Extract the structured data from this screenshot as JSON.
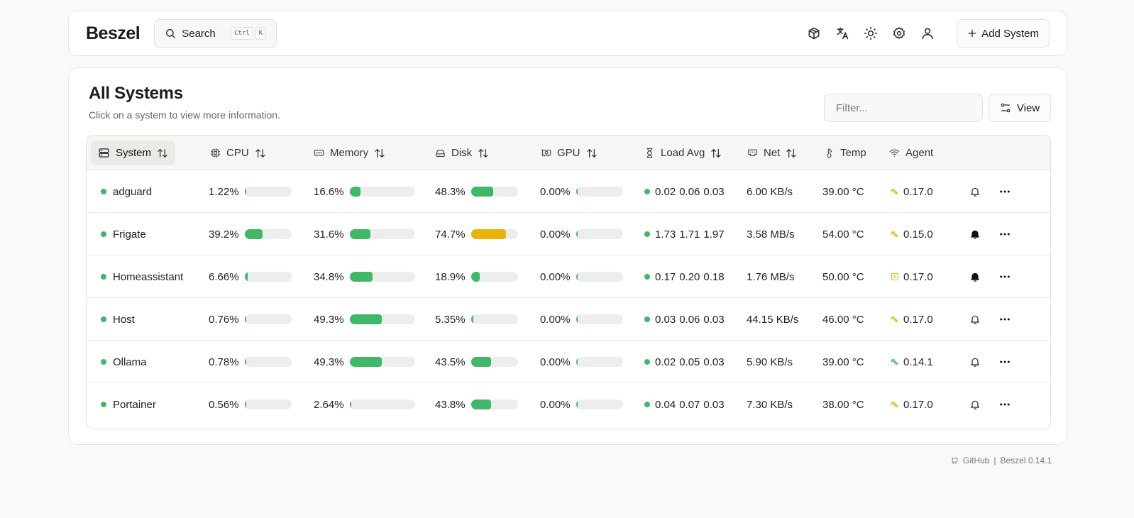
{
  "header": {
    "logo": "Beszel",
    "search_label": "Search",
    "search_keys": [
      "Ctrl",
      "K"
    ],
    "icons": [
      "cube-icon",
      "translate-icon",
      "sun-icon",
      "gear-icon",
      "user-icon"
    ],
    "add_system_label": "Add System"
  },
  "main": {
    "title": "All Systems",
    "subtitle": "Click on a system to view more information.",
    "filter_placeholder": "Filter...",
    "view_label": "View"
  },
  "table": {
    "columns": [
      {
        "label": "System",
        "icon": "server-icon",
        "sortable": true
      },
      {
        "label": "CPU",
        "icon": "cpu-icon",
        "sortable": true
      },
      {
        "label": "Memory",
        "icon": "memory-icon",
        "sortable": true
      },
      {
        "label": "Disk",
        "icon": "disk-icon",
        "sortable": true
      },
      {
        "label": "GPU",
        "icon": "gpu-icon",
        "sortable": true
      },
      {
        "label": "Load Avg",
        "icon": "hourglass-icon",
        "sortable": true
      },
      {
        "label": "Net",
        "icon": "ethernet-icon",
        "sortable": true
      },
      {
        "label": "Temp",
        "icon": "thermometer-icon",
        "sortable": false
      },
      {
        "label": "Agent",
        "icon": "wifi-icon",
        "sortable": false
      }
    ],
    "rows": [
      {
        "name": "adguard",
        "cpu": "1.22%",
        "cpu_pct": 1.22,
        "mem": "16.6%",
        "mem_pct": 16.6,
        "disk": "48.3%",
        "disk_pct": 48.3,
        "gpu": "0.00%",
        "gpu_pct": 0,
        "load": [
          "0.02",
          "0.06",
          "0.03"
        ],
        "net": "6.00 KB/s",
        "temp": "39.00 °C",
        "agent": "0.17.0",
        "agent_icon": "hatch-icon",
        "bell": "outline"
      },
      {
        "name": "Frigate",
        "cpu": "39.2%",
        "cpu_pct": 39.2,
        "mem": "31.6%",
        "mem_pct": 31.6,
        "disk": "74.7%",
        "disk_pct": 74.7,
        "gpu": "0.00%",
        "gpu_pct": 0,
        "load": [
          "1.73",
          "1.71",
          "1.97"
        ],
        "net": "3.58 MB/s",
        "temp": "54.00 °C",
        "agent": "0.15.0",
        "agent_icon": "hatch-icon",
        "bell": "filled"
      },
      {
        "name": "Homeassistant",
        "cpu": "6.66%",
        "cpu_pct": 6.66,
        "mem": "34.8%",
        "mem_pct": 34.8,
        "disk": "18.9%",
        "disk_pct": 18.9,
        "gpu": "0.00%",
        "gpu_pct": 0,
        "load": [
          "0.17",
          "0.20",
          "0.18"
        ],
        "net": "1.76 MB/s",
        "temp": "50.00 °C",
        "agent": "0.17.0",
        "agent_icon": "terminal-icon",
        "bell": "filled"
      },
      {
        "name": "Host",
        "cpu": "0.76%",
        "cpu_pct": 0.76,
        "mem": "49.3%",
        "mem_pct": 49.3,
        "disk": "5.35%",
        "disk_pct": 5.35,
        "gpu": "0.00%",
        "gpu_pct": 0,
        "load": [
          "0.03",
          "0.06",
          "0.03"
        ],
        "net": "44.15 KB/s",
        "temp": "46.00 °C",
        "agent": "0.17.0",
        "agent_icon": "hatch-icon",
        "bell": "outline"
      },
      {
        "name": "Ollama",
        "cpu": "0.78%",
        "cpu_pct": 0.78,
        "mem": "49.3%",
        "mem_pct": 49.3,
        "disk": "43.5%",
        "disk_pct": 43.5,
        "gpu": "0.00%",
        "gpu_pct": 0,
        "load": [
          "0.02",
          "0.05",
          "0.03"
        ],
        "net": "5.90 KB/s",
        "temp": "39.00 °C",
        "agent": "0.14.1",
        "agent_icon": "hatch-icon-green",
        "bell": "outline"
      },
      {
        "name": "Portainer",
        "cpu": "0.56%",
        "cpu_pct": 0.56,
        "mem": "2.64%",
        "mem_pct": 2.64,
        "disk": "43.8%",
        "disk_pct": 43.8,
        "gpu": "0.00%",
        "gpu_pct": 0,
        "load": [
          "0.04",
          "0.07",
          "0.03"
        ],
        "net": "7.30 KB/s",
        "temp": "38.00 °C",
        "agent": "0.17.0",
        "agent_icon": "hatch-icon",
        "bell": "outline"
      }
    ]
  },
  "footer": {
    "github": "GitHub",
    "separator": "|",
    "version": "Beszel 0.14.1"
  },
  "colors": {
    "ok": "#3fb867",
    "warn": "#eab308",
    "bar_bg": "#ededec",
    "agent_warn": "#eab308",
    "agent_ok": "#3fb867"
  }
}
